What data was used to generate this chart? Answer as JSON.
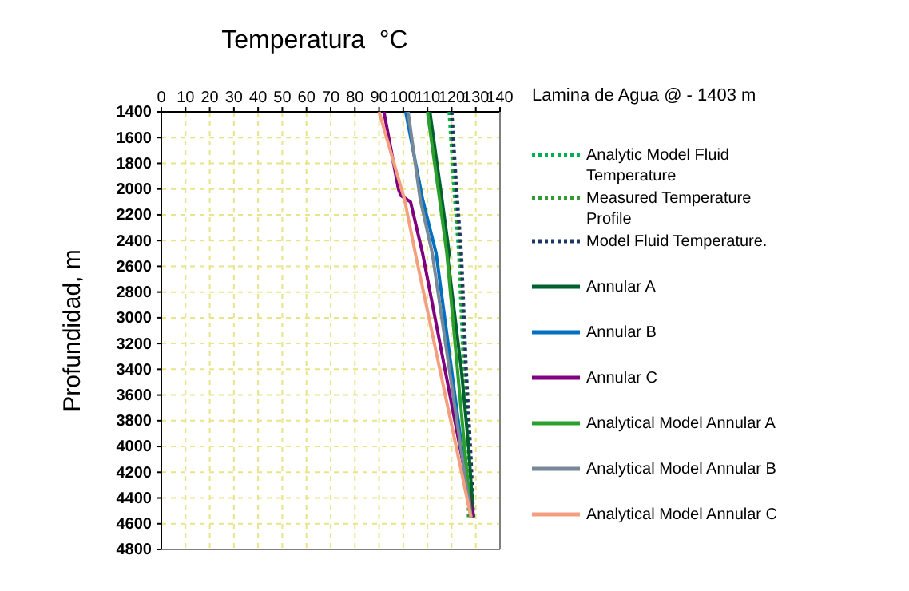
{
  "chart_data": {
    "type": "line",
    "title": "Temperatura  °C",
    "ylabel": "Profundidad, m",
    "annotations": [
      "Lamina de Agua @ - 1403 m"
    ],
    "xlim": [
      0,
      140
    ],
    "xticks": [
      0,
      10,
      20,
      30,
      40,
      50,
      60,
      70,
      80,
      90,
      100,
      110,
      120,
      130,
      140
    ],
    "ylim": [
      4800,
      1400
    ],
    "yticks": [
      1400,
      1600,
      1800,
      2000,
      2200,
      2400,
      2600,
      2800,
      3000,
      3200,
      3400,
      3600,
      3800,
      4000,
      4200,
      4400,
      4600,
      4800
    ],
    "grid": true,
    "legend": "right",
    "series": [
      {
        "name": "Analytic Model Fluid Temperature",
        "color": "#00b050",
        "line_style": "dotted",
        "x": [
          119,
          121,
          123,
          125,
          127,
          128
        ],
        "values": [
          1400,
          2000,
          2500,
          3400,
          4000,
          4550
        ]
      },
      {
        "name": "Measured Temperature Profile",
        "color": "#339933",
        "line_style": "dotted",
        "x": [
          120,
          121.5,
          123.5,
          125.5,
          127,
          127
        ],
        "values": [
          1400,
          2000,
          2500,
          3400,
          4000,
          4550
        ]
      },
      {
        "name": "Model Fluid Temperature.",
        "color": "#1f3864",
        "line_style": "dotted",
        "x": [
          120,
          122,
          124,
          126,
          128,
          129
        ],
        "values": [
          1400,
          2000,
          2500,
          3400,
          4100,
          4550
        ]
      },
      {
        "name": "Annular A",
        "color": "#006030",
        "line_style": "solid",
        "x": [
          111,
          116,
          119,
          118.5,
          124,
          127,
          129
        ],
        "values": [
          1400,
          2080,
          2500,
          2550,
          3400,
          4000,
          4550
        ]
      },
      {
        "name": "Annular B",
        "color": "#0070c0",
        "line_style": "solid",
        "x": [
          101,
          108,
          113.6,
          128
        ],
        "values": [
          1400,
          2080,
          2500,
          4550
        ]
      },
      {
        "name": "Annular C",
        "color": "#800080",
        "line_style": "solid",
        "x": [
          92,
          98,
          99,
          103,
          108,
          129
        ],
        "values": [
          1400,
          2000,
          2050,
          2100,
          2500,
          4550
        ]
      },
      {
        "name": "Analytical Model Annular A",
        "color": "#2ca02c",
        "line_style": "solid",
        "x": [
          110,
          115,
          118,
          128
        ],
        "values": [
          1400,
          2080,
          2500,
          4550
        ]
      },
      {
        "name": "Analytical Model Annular B",
        "color": "#778899",
        "line_style": "solid",
        "x": [
          102,
          107,
          112,
          128
        ],
        "values": [
          1400,
          2080,
          2500,
          4550
        ]
      },
      {
        "name": "Analytical Model Annular C",
        "color": "#f4a080",
        "line_style": "solid",
        "x": [
          90,
          100.5,
          105,
          128
        ],
        "values": [
          1400,
          2080,
          2500,
          4550
        ]
      }
    ]
  }
}
